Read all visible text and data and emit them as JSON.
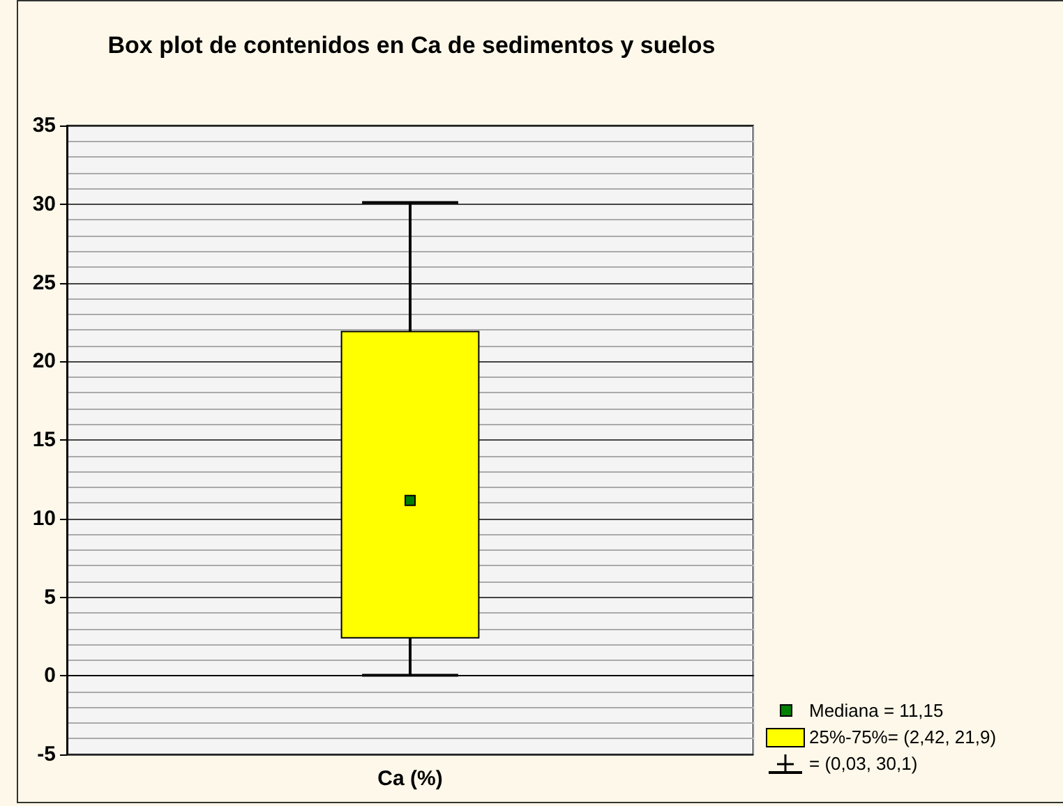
{
  "chart_data": {
    "type": "box",
    "title": "Box plot de contenidos en Ca de sedimentos y suelos",
    "categories": [
      "Ca (%)"
    ],
    "series": [
      {
        "color": "#ffff00",
        "boxes": [
          {
            "low": 0.03,
            "q1": 2.42,
            "median": 11.15,
            "q3": 21.9,
            "high": 30.1
          }
        ]
      }
    ],
    "ylim": [
      -5,
      35
    ],
    "yticks": [
      -5,
      0,
      5,
      10,
      15,
      20,
      25,
      30,
      35
    ],
    "grid": true,
    "annotations": [
      "Mediana = 11,15",
      "25%-75%= (2,42, 21,9)",
      "= (0,03, 30,1)"
    ]
  }
}
